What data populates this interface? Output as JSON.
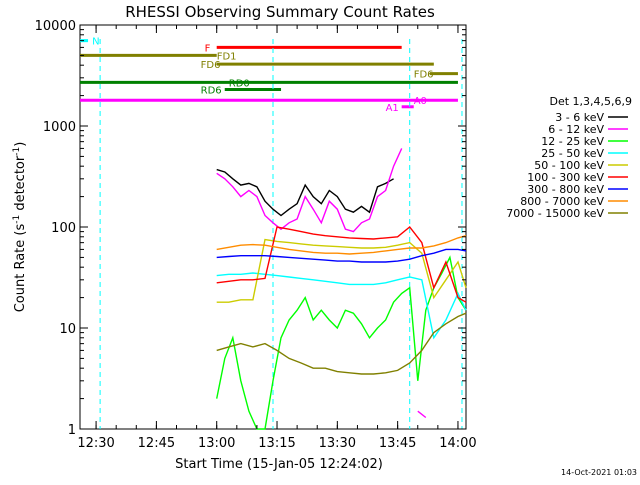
{
  "chart_data": {
    "type": "line",
    "title": "RHESSI Observing Summary Count Rates",
    "xlabel": "Start Time (15-Jan-05 12:24:02)",
    "ylabel_main": "Count Rate (s",
    "ylabel_sup1": "-1",
    "ylabel_mid": " detector",
    "ylabel_sup2": "-1",
    "ylabel_end": ")",
    "y_scale": "log",
    "ylim": [
      1,
      10000
    ],
    "xlim_minutes": [
      -33.97,
      6.2
    ],
    "x_ticks": [
      {
        "label": "12:30",
        "value": -30
      },
      {
        "label": "12:45",
        "value": -15
      },
      {
        "label": "13:00",
        "value": 0
      },
      {
        "label": "13:15",
        "value": 15
      },
      {
        "label": "13:30",
        "value": 30
      },
      {
        "label": "13:45",
        "value": 45
      },
      {
        "label": "14:00",
        "value": 60
      }
    ],
    "y_ticks": [
      {
        "label": "10000",
        "value": 10000
      },
      {
        "label": "1000",
        "value": 1000
      },
      {
        "label": "100",
        "value": 100
      },
      {
        "label": "10",
        "value": 10
      },
      {
        "label": "1",
        "value": 1
      }
    ],
    "legend_title": "Det 1,3,4,5,6,9",
    "legend_position": "right",
    "timestamp": "14-Oct-2021 01:03",
    "series": [
      {
        "name": "3 - 6 keV",
        "color": "#000000",
        "x": [
          0,
          2,
          4,
          6,
          8,
          10,
          12,
          14,
          16,
          18,
          20,
          22,
          24,
          26,
          28,
          30,
          32,
          34,
          36,
          38,
          40,
          42,
          44,
          46
        ],
        "values": [
          370,
          350,
          300,
          260,
          270,
          250,
          180,
          150,
          130,
          150,
          170,
          260,
          200,
          170,
          230,
          200,
          150,
          140,
          160,
          140,
          250,
          270,
          300,
          null
        ]
      },
      {
        "name": "6 - 12 keV",
        "color": "#ff00ff",
        "x": [
          0,
          2,
          4,
          6,
          8,
          10,
          12,
          14,
          16,
          18,
          20,
          22,
          24,
          26,
          28,
          30,
          32,
          34,
          36,
          38,
          40,
          42,
          44,
          46,
          48,
          50,
          52
        ],
        "values": [
          340,
          300,
          250,
          200,
          230,
          200,
          130,
          110,
          95,
          110,
          120,
          200,
          150,
          110,
          180,
          150,
          95,
          90,
          110,
          120,
          200,
          230,
          400,
          600,
          null,
          1.5,
          1.3
        ]
      },
      {
        "name": "12 - 25 keV",
        "color": "#00ff00",
        "x": [
          0,
          2,
          4,
          6,
          8,
          10,
          12,
          14,
          16,
          18,
          20,
          22,
          24,
          26,
          28,
          30,
          32,
          34,
          36,
          38,
          40,
          42,
          44,
          46,
          48,
          50,
          52,
          54,
          56,
          58,
          60,
          62
        ],
        "values": [
          2,
          5,
          8,
          3,
          1.5,
          1,
          1,
          3,
          8,
          12,
          15,
          20,
          12,
          15,
          12,
          10,
          15,
          14,
          11,
          8,
          10,
          12,
          18,
          22,
          25,
          3,
          15,
          25,
          35,
          50,
          20,
          15
        ]
      },
      {
        "name": "25 - 50 keV",
        "color": "#00ffff",
        "x": [
          0,
          3,
          6,
          9,
          12,
          15,
          18,
          21,
          24,
          27,
          30,
          33,
          36,
          39,
          42,
          45,
          48,
          51,
          54,
          57,
          60,
          62
        ],
        "values": [
          33,
          34,
          34,
          35,
          34,
          33,
          32,
          31,
          30,
          29,
          28,
          27,
          27,
          27,
          28,
          30,
          32,
          30,
          8,
          12,
          22,
          15
        ]
      },
      {
        "name": "50 - 100 keV",
        "color": "#cccc00",
        "x": [
          0,
          3,
          6,
          9,
          12,
          15,
          18,
          21,
          24,
          27,
          30,
          33,
          36,
          39,
          42,
          45,
          48,
          51,
          54,
          57,
          60,
          62
        ],
        "values": [
          18,
          18,
          19,
          19,
          75,
          72,
          70,
          68,
          66,
          65,
          64,
          63,
          62,
          62,
          63,
          66,
          70,
          55,
          20,
          30,
          45,
          25
        ]
      },
      {
        "name": "100 - 300 keV",
        "color": "#ff0000",
        "x": [
          0,
          3,
          6,
          9,
          12,
          15,
          18,
          21,
          24,
          27,
          30,
          33,
          36,
          39,
          42,
          45,
          48,
          51,
          54,
          57,
          60,
          62
        ],
        "values": [
          28,
          29,
          30,
          30,
          31,
          100,
          95,
          90,
          85,
          82,
          80,
          78,
          77,
          76,
          78,
          80,
          100,
          70,
          25,
          45,
          20,
          18
        ]
      },
      {
        "name": "300 - 800 keV",
        "color": "#0000ff",
        "x": [
          0,
          3,
          6,
          9,
          12,
          15,
          18,
          21,
          24,
          27,
          30,
          33,
          36,
          39,
          42,
          45,
          48,
          51,
          54,
          57,
          60,
          62
        ],
        "values": [
          50,
          51,
          52,
          52,
          52,
          51,
          50,
          49,
          48,
          47,
          46,
          46,
          45,
          45,
          45,
          46,
          48,
          52,
          55,
          60,
          60,
          58
        ]
      },
      {
        "name": "800 - 7000 keV",
        "color": "#ff8c00",
        "x": [
          0,
          3,
          6,
          9,
          12,
          15,
          18,
          21,
          24,
          27,
          30,
          33,
          36,
          39,
          42,
          45,
          48,
          51,
          54,
          57,
          60,
          62
        ],
        "values": [
          60,
          63,
          66,
          67,
          66,
          63,
          60,
          58,
          56,
          55,
          55,
          54,
          55,
          56,
          58,
          60,
          62,
          62,
          65,
          70,
          78,
          82
        ]
      },
      {
        "name": "7000 - 15000 keV",
        "color": "#808000",
        "x": [
          0,
          3,
          6,
          9,
          12,
          15,
          18,
          21,
          24,
          27,
          30,
          33,
          36,
          39,
          42,
          45,
          48,
          51,
          54,
          57,
          60,
          62
        ],
        "values": [
          6,
          6.5,
          7,
          6.5,
          7,
          6,
          5,
          4.5,
          4,
          4,
          3.7,
          3.6,
          3.5,
          3.5,
          3.6,
          3.8,
          4.5,
          6,
          9,
          11,
          13,
          14
        ]
      }
    ],
    "flag_bars": [
      {
        "label": "N",
        "color": "#00ffff",
        "x0": -34,
        "x1": -32,
        "level": 7000,
        "text_at": -31
      },
      {
        "label": "F",
        "color": "#ff0000",
        "x0": 0,
        "x1": 46,
        "level": 6000,
        "text_at": -3
      },
      {
        "label": "FD1",
        "color": "#808000",
        "x0": -34,
        "x1": 0,
        "level": 5000,
        "text_at": 0
      },
      {
        "label": "FD6",
        "color": "#808000",
        "x0": 0,
        "x1": 54,
        "level": 4100,
        "text_at": -4
      },
      {
        "label": "FD6",
        "color": "#808000",
        "x0": 53,
        "x1": 60,
        "level": 3300,
        "text_at": 49
      },
      {
        "label": "RD0",
        "color": "#008000",
        "x0": -34,
        "x1": 60,
        "level": 2700,
        "text_at": 3
      },
      {
        "label": "RD6",
        "color": "#008000",
        "x0": 2,
        "x1": 16,
        "level": 2300,
        "text_at": -4
      },
      {
        "label": "A0",
        "color": "#ff00ff",
        "x0": -34,
        "x1": 60,
        "level": 1800,
        "text_at": 49
      },
      {
        "label": "A1",
        "color": "#ff00ff",
        "x0": 46,
        "x1": 49,
        "level": 1550,
        "text_at": 42
      }
    ],
    "vertical_markers": [
      {
        "color": "#00ffff",
        "x": -29
      },
      {
        "color": "#00ffff",
        "x": 14
      },
      {
        "color": "#00ffff",
        "x": 48
      },
      {
        "color": "#00ffff",
        "x": 61
      }
    ]
  }
}
